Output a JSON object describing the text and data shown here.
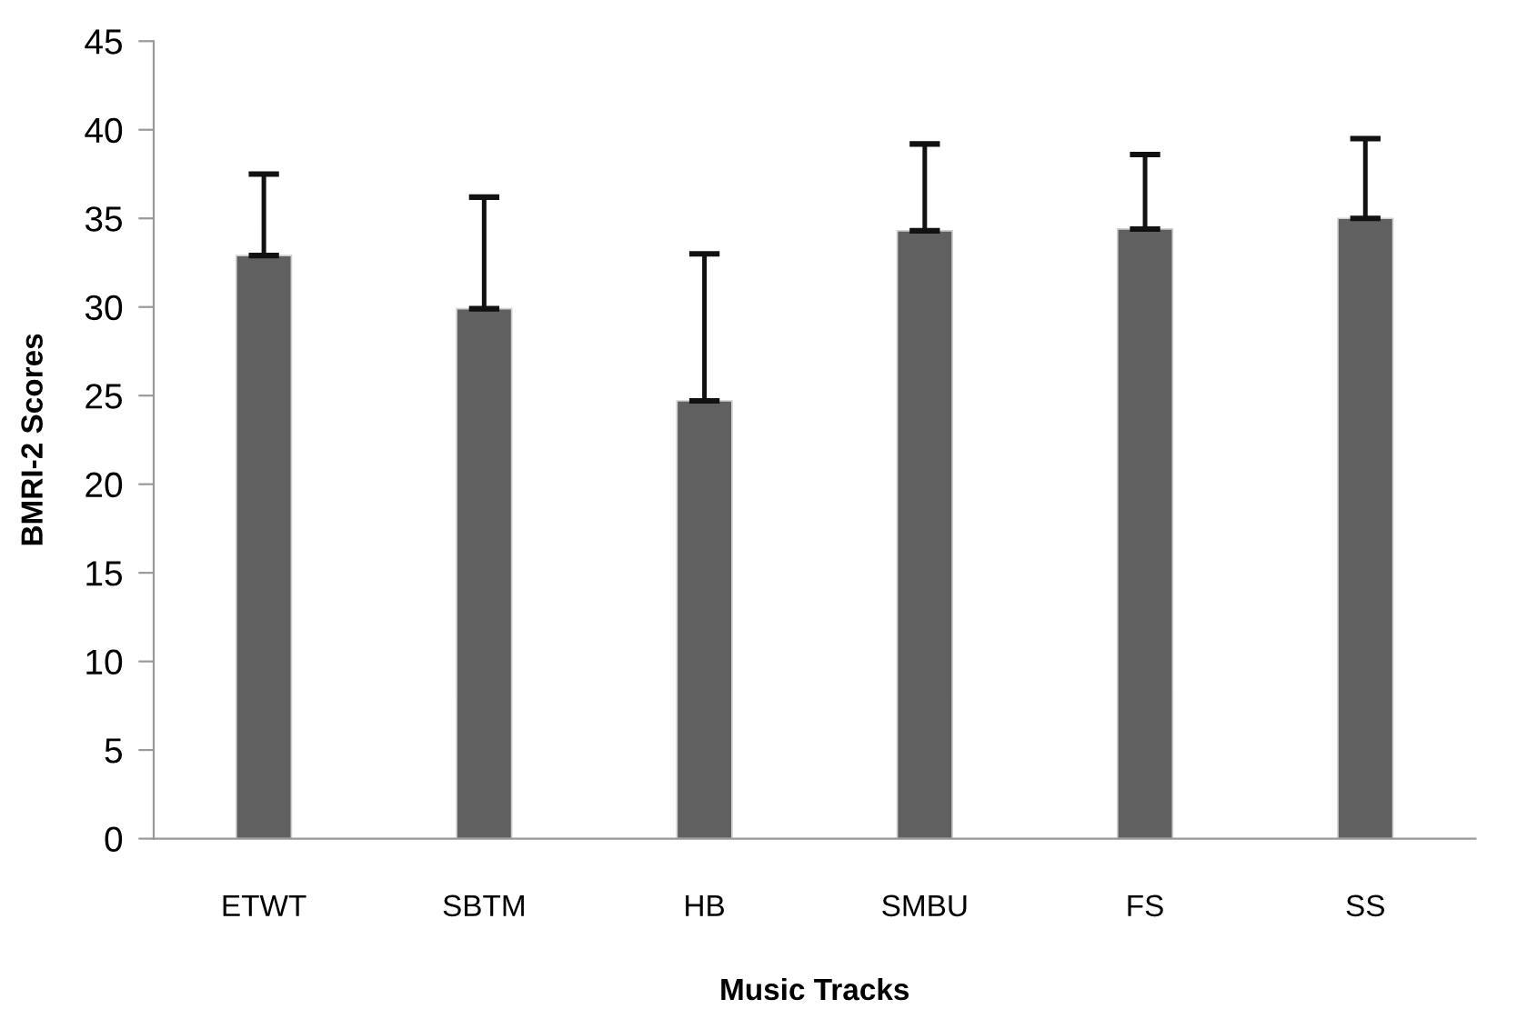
{
  "chart_data": {
    "type": "bar",
    "xlabel": "Music Tracks",
    "ylabel": "BMRI-2 Scores",
    "categories": [
      "ETWT",
      "SBTM",
      "HB",
      "SMBU",
      "FS",
      "SS"
    ],
    "values": [
      32.9,
      29.9,
      24.7,
      34.3,
      34.4,
      35.0
    ],
    "errors": [
      [
        32.9,
        37.5
      ],
      [
        29.9,
        36.2
      ],
      [
        24.7,
        33.0
      ],
      [
        34.3,
        39.2
      ],
      [
        34.4,
        38.6
      ],
      [
        35.0,
        39.5
      ]
    ],
    "color": "#606060",
    "ylim": [
      0,
      45
    ],
    "yticks": [
      0,
      5,
      10,
      15,
      20,
      25,
      30,
      35,
      40,
      45
    ],
    "grid": false,
    "legend": false
  }
}
